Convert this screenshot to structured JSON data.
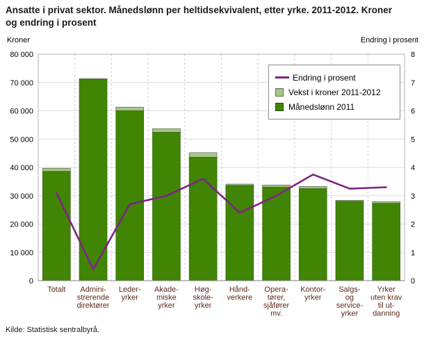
{
  "header": {
    "title": "Ansatte i privat sektor. Månedslønn per heltidsekvivalent, etter yrke. 2011-2012. Kroner og endring i prosent"
  },
  "axes": {
    "left_unit": "Kroner",
    "right_unit": "Endring i prosent"
  },
  "legend": {
    "items": [
      {
        "label": "Endring i prosent",
        "type": "line",
        "color": "#7c2483"
      },
      {
        "label": "Vekst i kroner 2011-2012",
        "type": "box",
        "color": "#a5c885"
      },
      {
        "label": "Månedslønn 2011",
        "type": "box",
        "color": "#418504"
      }
    ]
  },
  "source": "Kilde: Statistisk sentralbyrå.",
  "chart_data": {
    "type": "bar",
    "subtype": "stacked-bar-with-line",
    "title": "Ansatte i privat sektor. Månedslønn per heltidsekvivalent, etter yrke. 2011-2012. Kroner og endring i prosent",
    "categories": [
      "Totalt",
      "Administrerende direktører",
      "Lederyrker",
      "Akademiske yrker",
      "Høgskoleyrker",
      "Håndverkere",
      "Operatører, sjåfører mv.",
      "Kontoryrker",
      "Salgs- og serviceyrker",
      "Yrker uten krav til utdanning"
    ],
    "category_label_lines": [
      [
        "Totalt"
      ],
      [
        "Admini-",
        "strerende",
        "direktører"
      ],
      [
        "Leder-",
        "yrker"
      ],
      [
        "Akade-",
        "miske",
        "yrker"
      ],
      [
        "Høg-",
        "skole-",
        "yrker"
      ],
      [
        "Hånd-",
        "verkere"
      ],
      [
        "Opera-",
        "tører,",
        "sjåfører",
        "mv."
      ],
      [
        "Kontor-",
        "yrker"
      ],
      [
        "Salgs-",
        "og",
        "service-",
        "yrker"
      ],
      [
        "Yrker",
        "uten krav",
        "til ut-",
        "danning"
      ]
    ],
    "series": [
      {
        "name": "Månedslønn 2011",
        "type": "bar",
        "stack": "base",
        "axis": "left",
        "color": "#418504",
        "values": [
          38600,
          71100,
          60000,
          52400,
          43600,
          33600,
          33000,
          32500,
          28000,
          27300
        ]
      },
      {
        "name": "Vekst i kroner 2011-2012",
        "type": "bar",
        "stack": "top",
        "axis": "left",
        "color": "#a5c885",
        "values": [
          1100,
          300,
          1300,
          1300,
          1600,
          500,
          800,
          800,
          400,
          600
        ]
      },
      {
        "name": "Endring i prosent",
        "type": "line",
        "axis": "right",
        "color": "#7c2483",
        "values": [
          3.1,
          0.4,
          2.7,
          3.0,
          3.6,
          2.4,
          3.0,
          3.75,
          3.25,
          3.3
        ]
      }
    ],
    "y_left": {
      "label": "Kroner",
      "min": 0,
      "max": 80000,
      "ticks": [
        "0",
        "10 000",
        "20 000",
        "30 000",
        "40 000",
        "50 000",
        "60 000",
        "70 000",
        "80 000"
      ]
    },
    "y_right": {
      "label": "Endring i prosent",
      "min": 0,
      "max": 8,
      "ticks": [
        "0",
        "1",
        "2",
        "3",
        "4",
        "5",
        "6",
        "7",
        "8"
      ]
    },
    "grid": true,
    "legend_position": "top-right"
  }
}
